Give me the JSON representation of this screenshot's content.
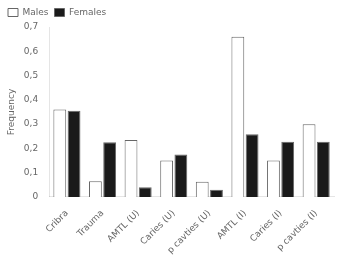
{
  "chart_data": {
    "type": "bar",
    "categories": [
      "Cribra",
      "Trauma",
      "AMTL (U)",
      "Caries (U)",
      "p cavties (U)",
      "AMTL (I)",
      "Caries (I)",
      "p cavties (I)"
    ],
    "series": [
      {
        "name": "Males",
        "color": "#ffffff",
        "values": [
          0.36,
          0.065,
          0.235,
          0.15,
          0.063,
          0.66,
          0.15,
          0.3
        ]
      },
      {
        "name": "Females",
        "color": "#1a1a1a",
        "values": [
          0.355,
          0.225,
          0.04,
          0.175,
          0.03,
          0.258,
          0.228,
          0.228
        ]
      }
    ],
    "y_label": "Frequency",
    "ylim": [
      0,
      0.7
    ],
    "yticks": [
      0,
      {
        "value": 0.1,
        "label": "0,1"
      },
      {
        "value": 0.2,
        "label": "0,2"
      },
      {
        "value": 0.3,
        "label": "0,3"
      },
      {
        "value": 0.4,
        "label": "0,4"
      },
      {
        "value": 0.5,
        "label": "0,5"
      },
      {
        "value": 0.6,
        "label": "0,6"
      },
      {
        "value": 0.7,
        "label": "0,7"
      }
    ],
    "grid": false,
    "legend": "upper left"
  }
}
